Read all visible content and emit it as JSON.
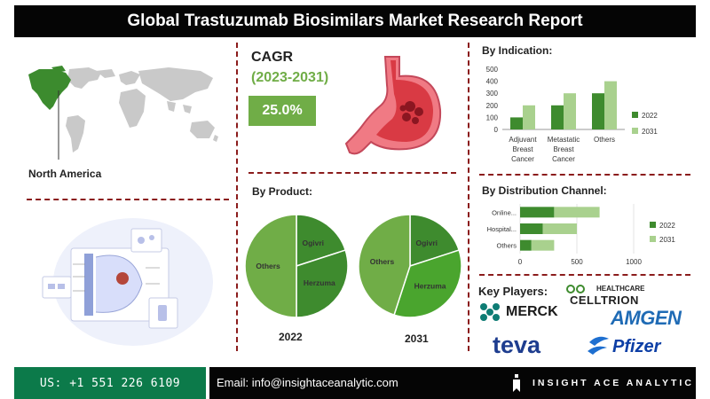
{
  "header": {
    "title": "Global Trastuzumab Biosimilars Market  Research Report"
  },
  "region": {
    "label": "North America"
  },
  "cagr": {
    "title": "CAGR",
    "period": "(2023-2031)",
    "value": "25.0%",
    "color": "#70ad47"
  },
  "colors": {
    "dark_green": "#3e8b2e",
    "light_green": "#a9d18e",
    "mid_green": "#70ad47",
    "separator": "#8b1c1c"
  },
  "by_product": {
    "title": "By Product:"
  },
  "by_indication": {
    "title": "By Indication:"
  },
  "by_channel": {
    "title": "By Distribution Channel:"
  },
  "key_players": {
    "title": "Key Players:",
    "players": {
      "celltrion_top": "HEALTHCARE",
      "celltrion": "CELLTRION",
      "merck": "MERCK",
      "amgen": "AMGEN",
      "teva": "teva",
      "pfizer": "Pfizer"
    },
    "icons": [
      "merck-logo-icon",
      "celltrion-logo-icon",
      "amgen-logo-icon",
      "teva-logo-icon",
      "pfizer-logo-icon"
    ]
  },
  "footer": {
    "phone": "US: +1 551 226 6109",
    "email": "Email: info@insightaceanalytic.com",
    "brand": "INSIGHT ACE ANALYTIC"
  },
  "chart_data": [
    {
      "id": "indication",
      "type": "bar",
      "title": "By Indication:",
      "categories": [
        [
          "Adjuvant",
          "Breast",
          "Cancer"
        ],
        [
          "Metastatic",
          "Breast",
          "Cancer"
        ],
        [
          "Others"
        ]
      ],
      "series": [
        {
          "name": "2022",
          "values": [
            100,
            200,
            300
          ],
          "color": "#3e8b2e"
        },
        {
          "name": "2031",
          "values": [
            200,
            300,
            400
          ],
          "color": "#a9d18e"
        }
      ],
      "ylim": [
        0,
        500
      ],
      "yticks": [
        0,
        100,
        200,
        300,
        400,
        500
      ],
      "grid": false,
      "legend": "right"
    },
    {
      "id": "channel",
      "type": "bar",
      "orientation": "horizontal",
      "stacked": true,
      "title": "By Distribution Channel:",
      "categories": [
        "Online...",
        "Hospital...",
        "Others"
      ],
      "series": [
        {
          "name": "2022",
          "values": [
            300,
            200,
            100
          ],
          "color": "#3e8b2e"
        },
        {
          "name": "2031",
          "values": [
            400,
            300,
            200
          ],
          "color": "#a9d18e"
        }
      ],
      "xlim": [
        0,
        1000
      ],
      "xticks": [
        0,
        500,
        1000
      ],
      "grid": true,
      "legend": "right"
    },
    {
      "id": "product-2022",
      "type": "pie",
      "caption": "2022",
      "slices": [
        {
          "label": "Ogivri",
          "value": 20,
          "color": "#3e8b2e"
        },
        {
          "label": "Herzuma",
          "value": 30,
          "color": "#3e8b2e"
        },
        {
          "label": "Others",
          "value": 50,
          "color": "#70ad47"
        }
      ]
    },
    {
      "id": "product-2031",
      "type": "pie",
      "caption": "2031",
      "slices": [
        {
          "label": "Ogivri",
          "value": 20,
          "color": "#3e8b2e"
        },
        {
          "label": "Herzuma",
          "value": 35,
          "color": "#4aa52e"
        },
        {
          "label": "Others",
          "value": 45,
          "color": "#70ad47"
        }
      ]
    }
  ]
}
